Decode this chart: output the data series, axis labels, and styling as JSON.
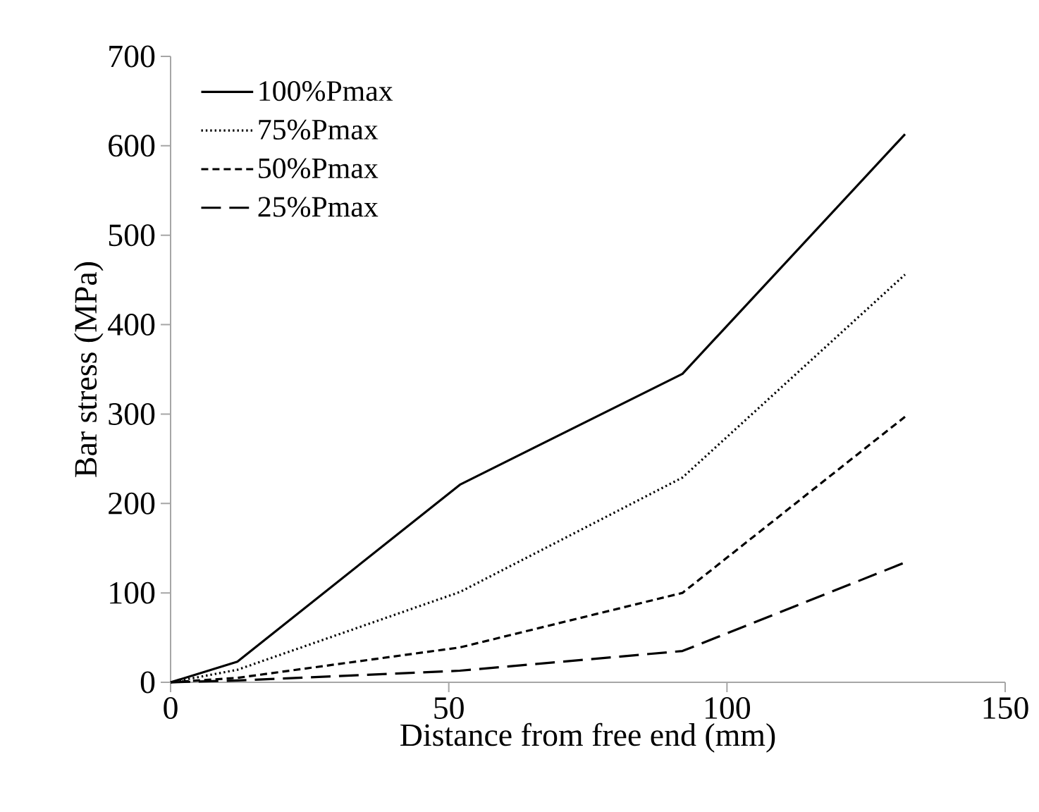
{
  "chart_data": {
    "type": "line",
    "xlabel": "Distance from free end (mm)",
    "ylabel": "Bar stress (MPa)",
    "xlim": [
      0,
      150
    ],
    "xticks": [
      0,
      50,
      100,
      150
    ],
    "ylim": [
      0,
      700
    ],
    "yticks": [
      0,
      100,
      200,
      300,
      400,
      500,
      600,
      700
    ],
    "grid": false,
    "legend": "top left",
    "marker": "none",
    "series": [
      {
        "name": "100%Pmax",
        "color": "#000000",
        "line_style": "solid",
        "x": [
          0,
          12,
          52,
          92,
          132
        ],
        "values": [
          0,
          23,
          221,
          345,
          613
        ]
      },
      {
        "name": "75%Pmax",
        "color": "#000000",
        "line_style": "dotted",
        "x": [
          0,
          12,
          52,
          92,
          132
        ],
        "values": [
          0,
          14,
          101,
          229,
          456
        ]
      },
      {
        "name": "50%Pmax",
        "color": "#000000",
        "line_style": "dashed",
        "x": [
          0,
          12,
          52,
          92,
          132
        ],
        "values": [
          0,
          5,
          39,
          100,
          297
        ]
      },
      {
        "name": "25%Pmax",
        "color": "#000000",
        "line_style": "long dashed",
        "x": [
          0,
          12,
          52,
          92,
          132
        ],
        "values": [
          0,
          2,
          13,
          35,
          134
        ]
      }
    ]
  }
}
